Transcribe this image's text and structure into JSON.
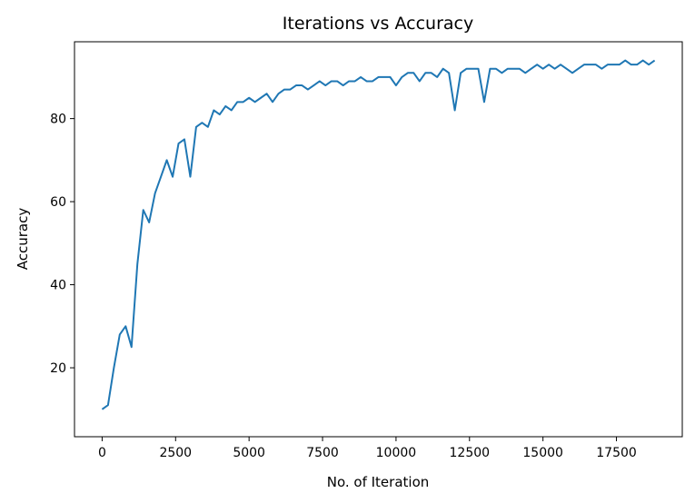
{
  "chart_data": {
    "type": "line",
    "title": "Iterations vs Accuracy",
    "x_label": "No. of Iteration",
    "y_label": "Accuracy",
    "x": [
      0,
      200,
      400,
      600,
      800,
      1000,
      1200,
      1400,
      1600,
      1800,
      2000,
      2200,
      2400,
      2600,
      2800,
      3000,
      3200,
      3400,
      3600,
      3800,
      4000,
      4200,
      4400,
      4600,
      4800,
      5000,
      5200,
      5400,
      5600,
      5800,
      6000,
      6200,
      6400,
      6600,
      6800,
      7000,
      7200,
      7400,
      7600,
      7800,
      8000,
      8200,
      8400,
      8600,
      8800,
      9000,
      9200,
      9400,
      9600,
      9800,
      10000,
      10200,
      10400,
      10600,
      10800,
      11000,
      11200,
      11400,
      11600,
      11800,
      12000,
      12200,
      12400,
      12600,
      12800,
      13000,
      13200,
      13400,
      13600,
      13800,
      14000,
      14200,
      14400,
      14600,
      14800,
      15000,
      15200,
      15400,
      15600,
      15800,
      16000,
      16200,
      16400,
      16600,
      16800,
      17000,
      17200,
      17400,
      17600,
      17800,
      18000,
      18200,
      18400,
      18600,
      18800
    ],
    "series": [
      {
        "name": "Accuracy",
        "color": "#1f77b4",
        "values": [
          10,
          11,
          20,
          28,
          30,
          25,
          45,
          58,
          55,
          62,
          66,
          70,
          66,
          74,
          75,
          66,
          78,
          79,
          78,
          82,
          81,
          83,
          82,
          84,
          84,
          85,
          84,
          85,
          86,
          84,
          86,
          87,
          87,
          88,
          88,
          87,
          88,
          89,
          88,
          89,
          89,
          88,
          89,
          89,
          90,
          89,
          89,
          90,
          90,
          90,
          88,
          90,
          91,
          91,
          89,
          91,
          91,
          90,
          92,
          91,
          82,
          91,
          92,
          92,
          92,
          84,
          92,
          92,
          91,
          92,
          92,
          92,
          91,
          92,
          93,
          92,
          93,
          92,
          93,
          92,
          91,
          92,
          93,
          93,
          93,
          92,
          93,
          93,
          93,
          94,
          93,
          93,
          94,
          93,
          94
        ]
      }
    ],
    "xlim": [
      -940,
      19740
    ],
    "ylim": [
      3.4,
      98.5
    ],
    "xticks": [
      0,
      2500,
      5000,
      7500,
      10000,
      12500,
      15000,
      17500
    ],
    "yticks": [
      20,
      40,
      60,
      80
    ]
  }
}
